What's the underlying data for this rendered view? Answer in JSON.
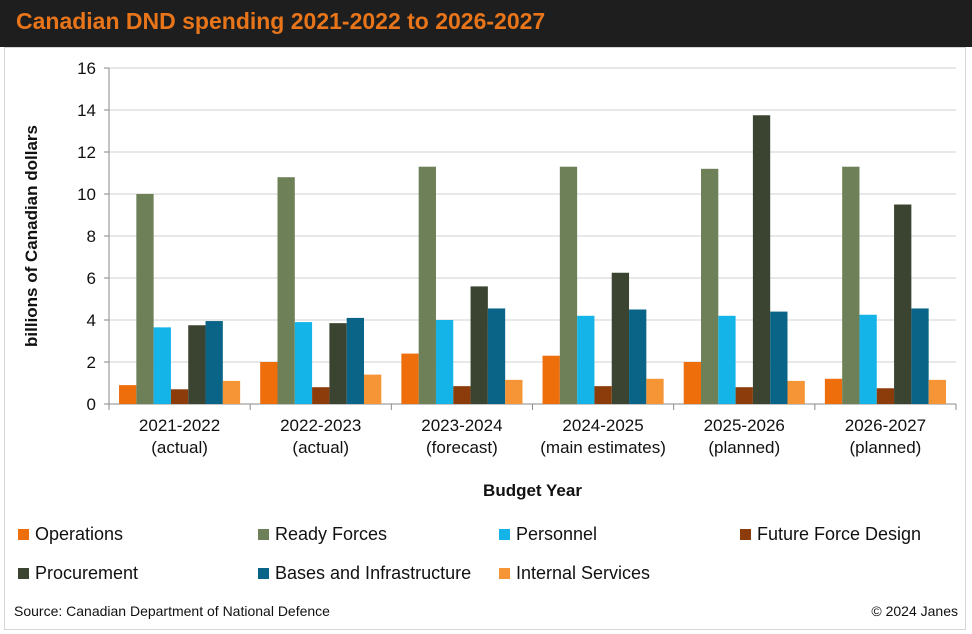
{
  "header": {
    "title": "Canadian DND spending 2021-2022 to 2026-2027"
  },
  "footer": {
    "source": "Source: Canadian Department of National Defence",
    "copyright": "© 2024 Janes"
  },
  "chart_data": {
    "type": "bar",
    "title": "Canadian DND spending 2021-2022 to 2026-2027",
    "xlabel": "Budget Year",
    "ylabel": "billions  of Canadian dollars",
    "ylim": [
      0,
      16
    ],
    "yticks": [
      "0",
      "2",
      "4",
      "6",
      "8",
      "10",
      "12",
      "14",
      "16"
    ],
    "grid": true,
    "legend_position": "bottom",
    "categories": [
      [
        "2021-2022",
        "(actual)"
      ],
      [
        "2022-2023",
        "(actual)"
      ],
      [
        "2023-2024",
        "(forecast)"
      ],
      [
        "2024-2025",
        "(main estimates)"
      ],
      [
        "2025-2026",
        "(planned)"
      ],
      [
        "2026-2027",
        "(planned)"
      ]
    ],
    "series": [
      {
        "name": "Operations",
        "color": "#ee6e0c",
        "values": [
          0.9,
          2.0,
          2.4,
          2.3,
          2.0,
          1.2
        ]
      },
      {
        "name": "Ready Forces",
        "color": "#6e8057",
        "values": [
          10.0,
          10.8,
          11.3,
          11.3,
          11.2,
          11.3
        ]
      },
      {
        "name": "Personnel",
        "color": "#14b4e8",
        "values": [
          3.65,
          3.9,
          4.0,
          4.2,
          4.2,
          4.25
        ]
      },
      {
        "name": "Future Force Design",
        "color": "#8c3c0a",
        "values": [
          0.7,
          0.8,
          0.85,
          0.85,
          0.8,
          0.75
        ]
      },
      {
        "name": "Procurement",
        "color": "#3b4430",
        "values": [
          3.75,
          3.85,
          5.6,
          6.25,
          13.75,
          9.5
        ]
      },
      {
        "name": "Bases and Infrastructure",
        "color": "#0a6487",
        "values": [
          3.95,
          4.1,
          4.55,
          4.5,
          4.4,
          4.55
        ]
      },
      {
        "name": "Internal Services",
        "color": "#f59536",
        "values": [
          1.1,
          1.4,
          1.15,
          1.2,
          1.1,
          1.15
        ]
      }
    ]
  }
}
